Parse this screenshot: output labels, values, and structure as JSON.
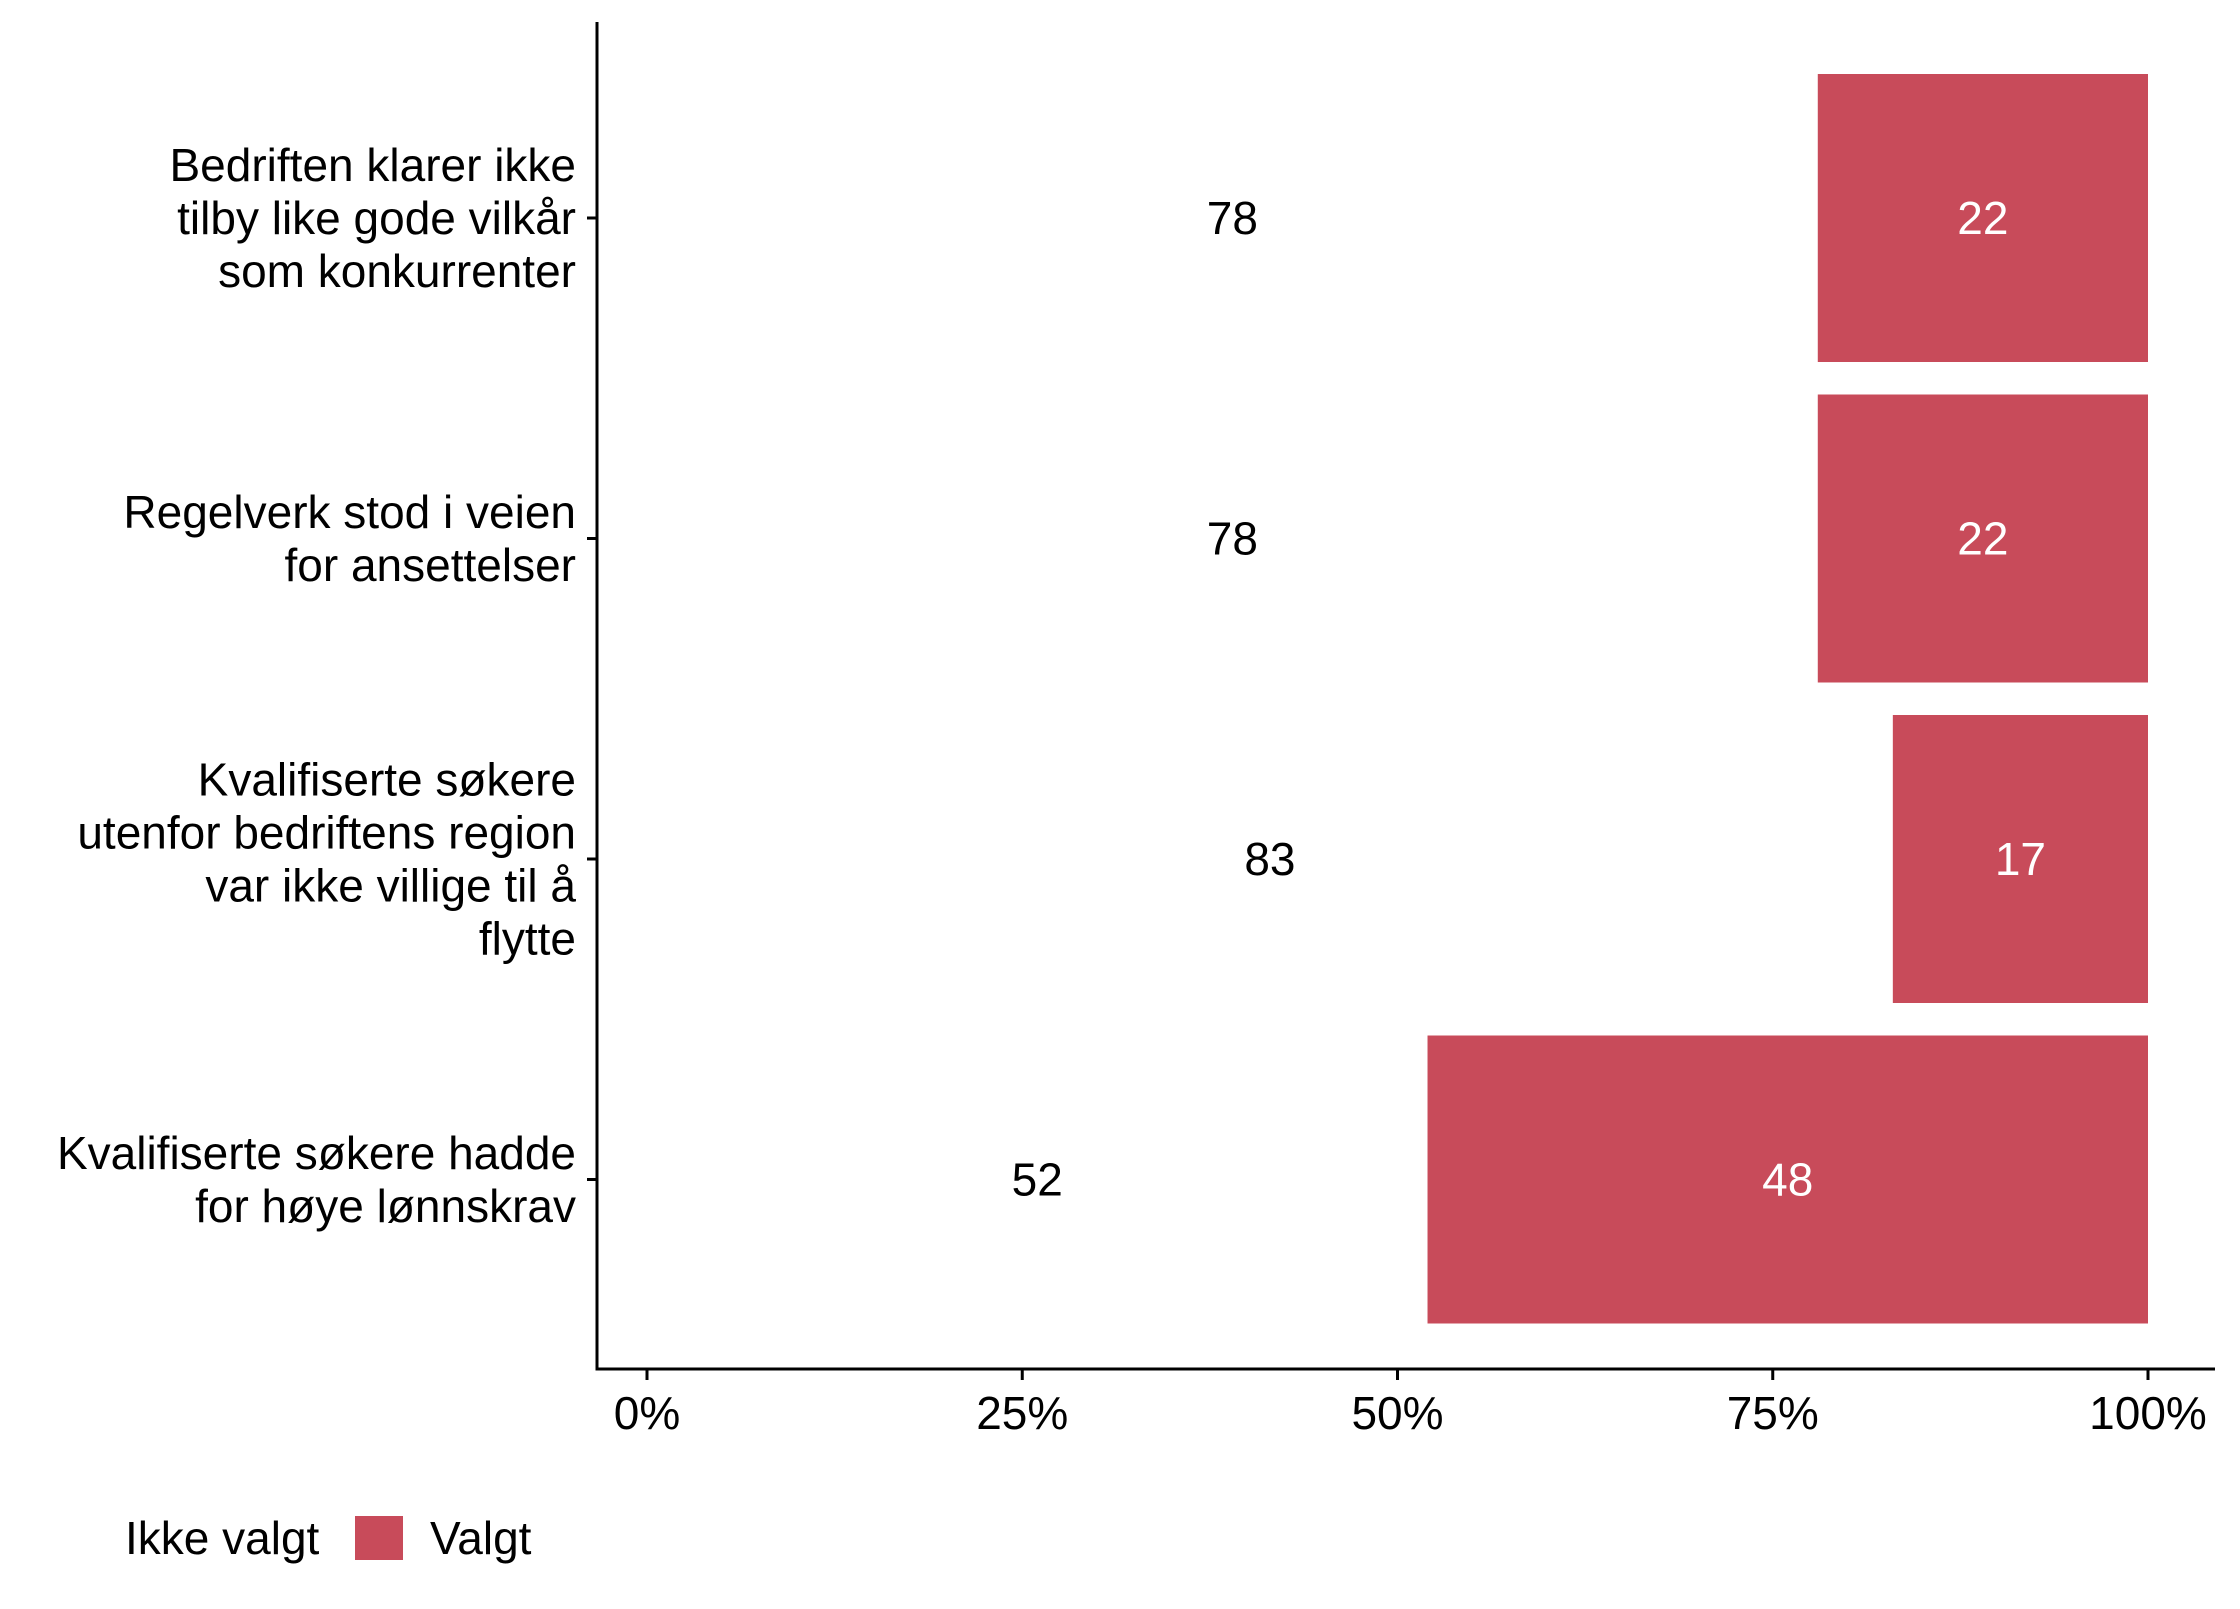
{
  "chart_data": {
    "type": "bar",
    "orientation": "horizontal",
    "stacked": true,
    "categories": [
      [
        "Bedriften klarer ikke",
        "tilby like gode vilkår",
        "som konkurrenter"
      ],
      [
        "Regelverk stod i veien",
        "for ansettelser"
      ],
      [
        "Kvalifiserte søkere",
        "utenfor bedriftens region",
        "var ikke villige til å",
        "flytte"
      ],
      [
        "Kvalifiserte søkere hadde",
        "for høye lønnskrav"
      ]
    ],
    "series": [
      {
        "name": "Ikke valgt",
        "values": [
          78,
          78,
          83,
          52
        ],
        "color": "#ffffff"
      },
      {
        "name": "Valgt",
        "values": [
          22,
          22,
          17,
          48
        ],
        "color": "#c84b5a"
      }
    ],
    "xlim": [
      0,
      100
    ],
    "xticks": [
      "0%",
      "25%",
      "50%",
      "75%",
      "100%"
    ],
    "xtick_values": [
      0,
      25,
      50,
      75,
      100
    ],
    "grid": false,
    "legend_position": "bottom-left",
    "title": "",
    "xlabel": "",
    "ylabel": ""
  }
}
